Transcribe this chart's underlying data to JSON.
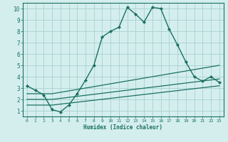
{
  "xlabel": "Humidex (Indice chaleur)",
  "background_color": "#d4eeee",
  "grid_color": "#aed4d4",
  "line_color": "#1a7060",
  "xlim": [
    -0.5,
    23.5
  ],
  "ylim": [
    0.5,
    10.5
  ],
  "xticks": [
    0,
    1,
    2,
    3,
    4,
    5,
    6,
    7,
    8,
    9,
    10,
    11,
    12,
    13,
    14,
    15,
    16,
    17,
    18,
    19,
    20,
    21,
    22,
    23
  ],
  "yticks": [
    1,
    2,
    3,
    4,
    5,
    6,
    7,
    8,
    9,
    10
  ],
  "series": [
    {
      "x": [
        0,
        1,
        2,
        3,
        4,
        5,
        6,
        7,
        8,
        9,
        10,
        11,
        12,
        13,
        14,
        15,
        16,
        17,
        18,
        19,
        20,
        21,
        22,
        23
      ],
      "y": [
        3.2,
        2.8,
        2.4,
        1.1,
        0.9,
        1.5,
        2.5,
        3.7,
        5.0,
        7.5,
        8.0,
        8.35,
        10.1,
        9.5,
        8.8,
        10.1,
        10.0,
        8.2,
        6.8,
        5.3,
        4.0,
        3.6,
        4.0,
        3.5
      ],
      "marker": true
    },
    {
      "x": [
        0,
        3,
        23
      ],
      "y": [
        2.5,
        2.5,
        5.0
      ],
      "marker": false
    },
    {
      "x": [
        0,
        3,
        23
      ],
      "y": [
        2.0,
        2.0,
        3.8
      ],
      "marker": false
    },
    {
      "x": [
        0,
        3,
        23
      ],
      "y": [
        1.5,
        1.5,
        3.2
      ],
      "marker": false
    }
  ]
}
